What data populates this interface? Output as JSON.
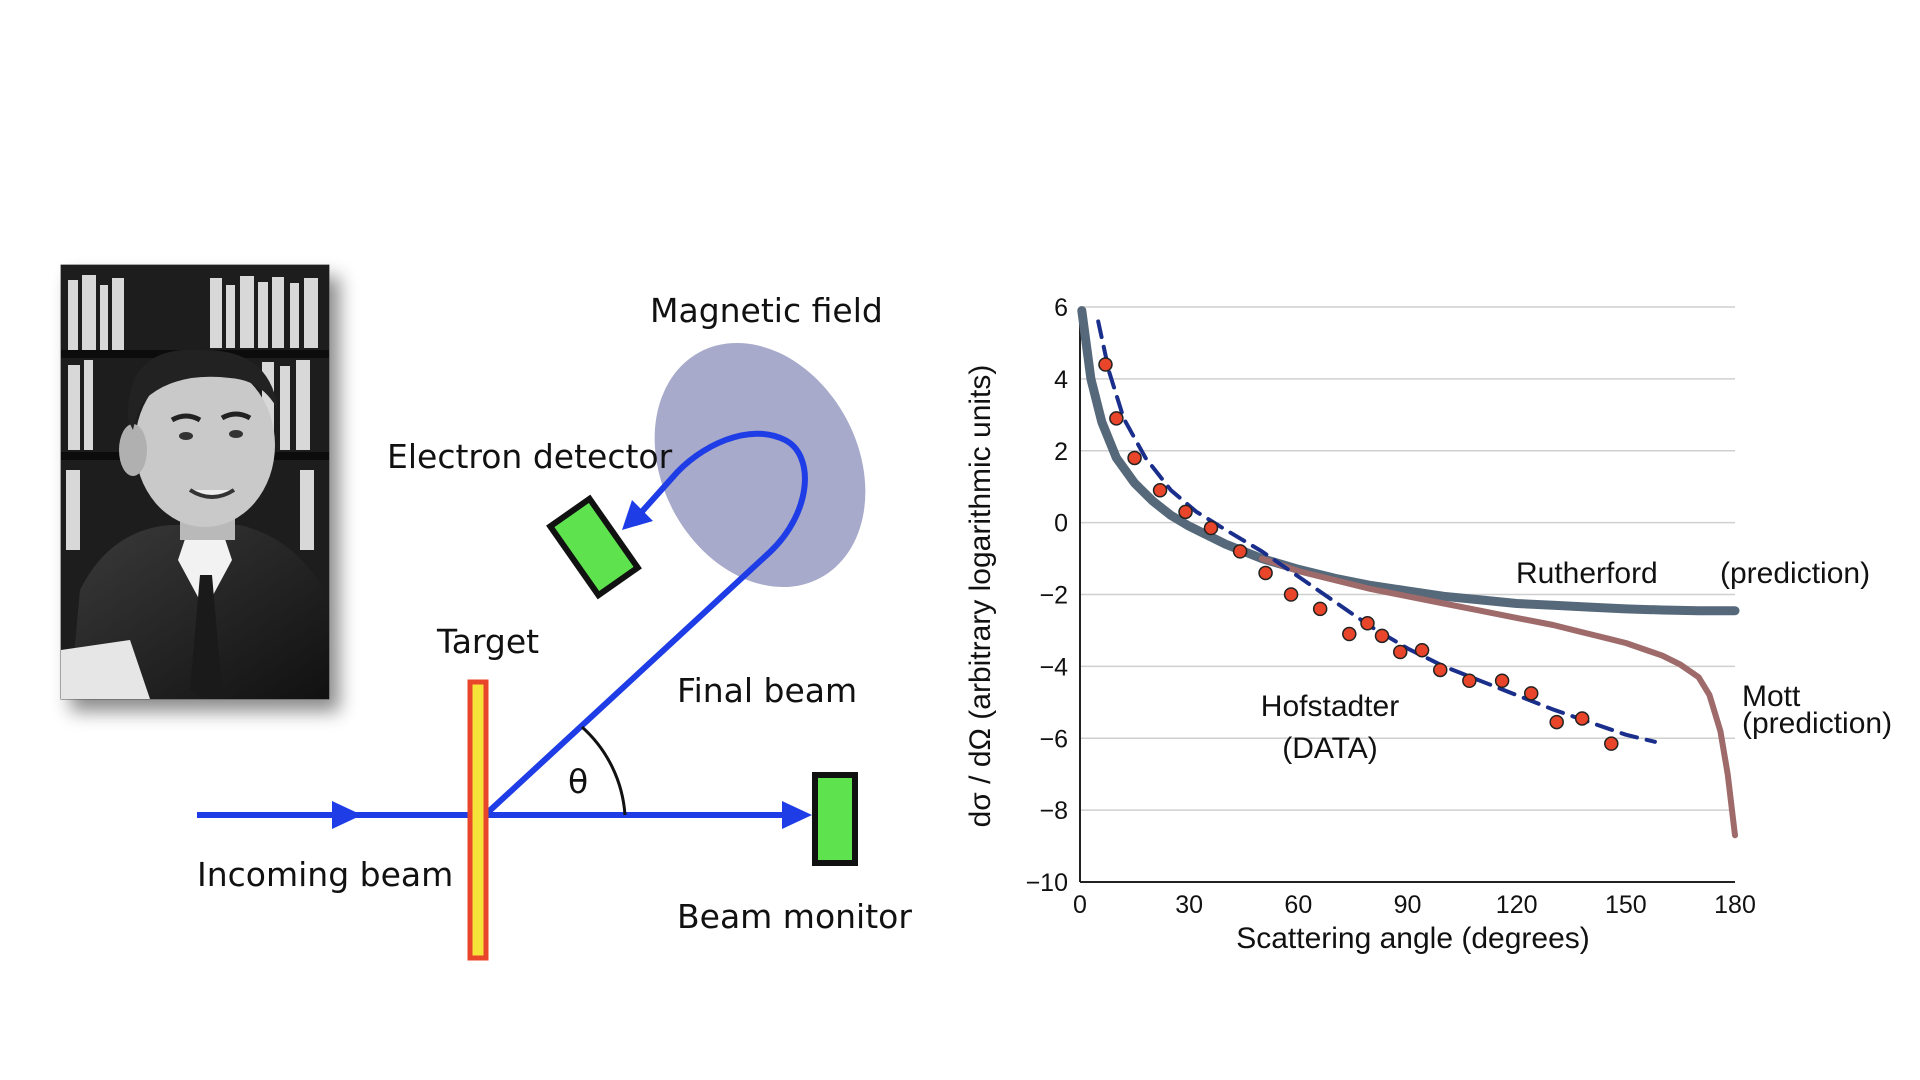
{
  "diagram": {
    "labels": {
      "magnetic_field": "Magnetic field",
      "electron_detector": "Electron detector",
      "target": "Target",
      "final_beam": "Final beam",
      "theta": "θ",
      "incoming_beam": "Incoming beam",
      "beam_monitor": "Beam monitor"
    },
    "colors": {
      "beam": "#1f3de6",
      "detector": "#5ee34f",
      "target_outer": "#e8452a",
      "target_inner": "#f5e33a",
      "magnet": "#9da1c4"
    },
    "photo": {
      "icon": "portrait-photo-icon"
    }
  },
  "chart_data": {
    "type": "line",
    "xlabel": "Scattering angle (degrees)",
    "ylabel": "dσ / dΩ (arbitrary logarithmic units)",
    "xlim": [
      0,
      180
    ],
    "ylim": [
      -10,
      6
    ],
    "xticks": [
      "0",
      "30",
      "60",
      "90",
      "120",
      "150",
      "180"
    ],
    "yticks": [
      "6",
      "4",
      "2",
      "0",
      "−2",
      "−4",
      "−6",
      "−8",
      "−10"
    ],
    "grid": true,
    "annotations": {
      "rutherford": "Rutherford",
      "rutherford_pred": "(prediction)",
      "mott": "Mott",
      "mott_pred": "(prediction)",
      "hofstadter": "Hofstadter",
      "hofstadter_data": "(DATA)"
    },
    "series": [
      {
        "key": "rutherford",
        "style": "solid",
        "color": "#56697a",
        "x": [
          0.5,
          3,
          6,
          10,
          15,
          20,
          25,
          30,
          40,
          50,
          60,
          70,
          80,
          90,
          100,
          110,
          120,
          130,
          140,
          150,
          160,
          170,
          180
        ],
        "y": [
          5.9,
          4.0,
          2.8,
          1.8,
          1.1,
          0.6,
          0.2,
          -0.1,
          -0.6,
          -1.0,
          -1.3,
          -1.55,
          -1.75,
          -1.9,
          -2.05,
          -2.15,
          -2.25,
          -2.3,
          -2.35,
          -2.4,
          -2.43,
          -2.45,
          -2.45
        ]
      },
      {
        "key": "mott",
        "style": "solid",
        "color": "#9e6a6a",
        "x": [
          50,
          60,
          70,
          80,
          90,
          100,
          110,
          120,
          130,
          140,
          150,
          160,
          165,
          170,
          173,
          176,
          178,
          180
        ],
        "y": [
          -1.0,
          -1.35,
          -1.6,
          -1.85,
          -2.05,
          -2.25,
          -2.45,
          -2.65,
          -2.85,
          -3.1,
          -3.35,
          -3.7,
          -3.95,
          -4.3,
          -4.8,
          -5.8,
          -7.0,
          -8.7
        ]
      },
      {
        "key": "hofstadter_fit",
        "style": "dashed",
        "color": "#1a2e8c",
        "x": [
          5,
          8,
          12,
          18,
          25,
          32,
          40,
          50,
          60,
          70,
          80,
          90,
          100,
          110,
          120,
          130,
          140,
          150,
          158
        ],
        "y": [
          5.6,
          4.2,
          2.9,
          1.8,
          0.9,
          0.3,
          -0.2,
          -0.8,
          -1.5,
          -2.2,
          -2.9,
          -3.5,
          -4.0,
          -4.4,
          -4.8,
          -5.2,
          -5.55,
          -5.9,
          -6.1
        ]
      },
      {
        "key": "hofstadter_points",
        "style": "points",
        "color": "#e8452a",
        "x": [
          7,
          10,
          15,
          22,
          29,
          36,
          44,
          51,
          58,
          66,
          74,
          79,
          83,
          88,
          94,
          99,
          107,
          116,
          124,
          131,
          138,
          146
        ],
        "y": [
          4.4,
          2.9,
          1.8,
          0.9,
          0.3,
          -0.15,
          -0.8,
          -1.4,
          -2.0,
          -2.4,
          -3.1,
          -2.8,
          -3.15,
          -3.6,
          -3.55,
          -4.1,
          -4.4,
          -4.4,
          -4.75,
          -5.55,
          -5.45,
          -6.15
        ]
      }
    ]
  }
}
